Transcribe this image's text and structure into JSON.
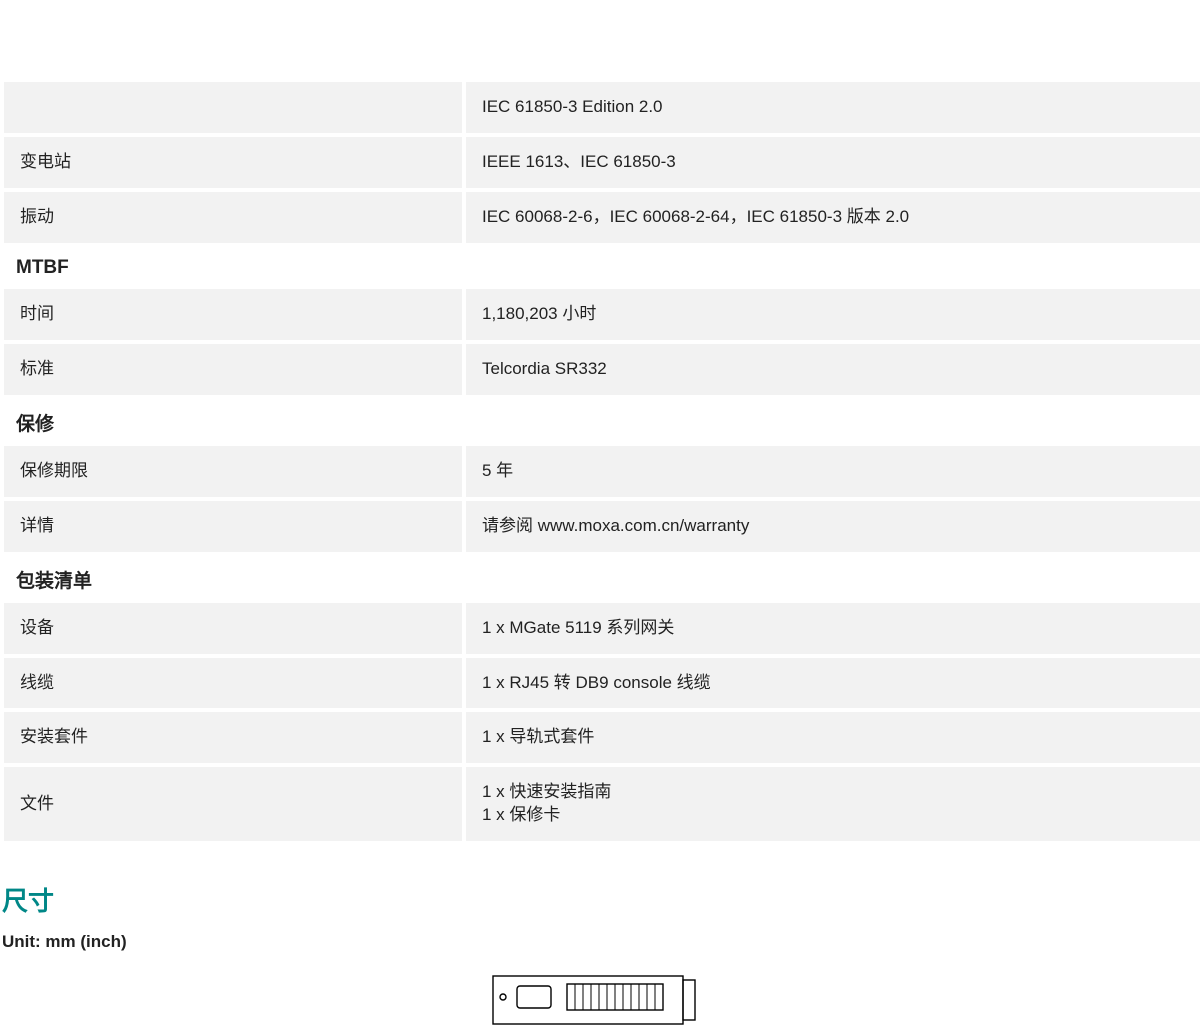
{
  "colors": {
    "row_bg": "#f2f2f2",
    "page_bg": "#ffffff",
    "text": "#222222",
    "accent": "#008787",
    "diagram_stroke": "#000000"
  },
  "sections": [
    {
      "id": "std",
      "header": null,
      "rows": [
        {
          "id": "std1",
          "label": "",
          "value": "IEC 61850-3 Edition 2.0"
        },
        {
          "id": "std2",
          "label": "变电站",
          "value": "IEEE 1613、IEC 61850-3"
        },
        {
          "id": "std3",
          "label": "振动",
          "value": "IEC 60068-2-6，IEC 60068-2-64，IEC 61850-3 版本 2.0"
        }
      ]
    },
    {
      "id": "mtbf",
      "header": "MTBF",
      "rows": [
        {
          "id": "mtbf1",
          "label": "时间",
          "value": "1,180,203 小时"
        },
        {
          "id": "mtbf2",
          "label": "标准",
          "value": "Telcordia SR332"
        }
      ]
    },
    {
      "id": "warranty",
      "header": "保修",
      "rows": [
        {
          "id": "w1",
          "label": "保修期限",
          "value": "5 年"
        },
        {
          "id": "w2",
          "label": "详情",
          "value": "请参阅 www.moxa.com.cn/warranty"
        }
      ]
    },
    {
      "id": "package",
      "header": "包装清单",
      "rows": [
        {
          "id": "p1",
          "label": "设备",
          "value": "1 x MGate 5119 系列网关"
        },
        {
          "id": "p2",
          "label": "线缆",
          "value": "1 x RJ45 转 DB9 console 线缆"
        },
        {
          "id": "p3",
          "label": "安装套件",
          "value": "1 x 导轨式套件"
        },
        {
          "id": "p4",
          "label": "文件",
          "value": "1 x 快速安装指南\n1 x 保修卡"
        }
      ]
    }
  ],
  "dimensions": {
    "heading": "尺寸",
    "unit_label": "Unit: mm (inch)"
  }
}
